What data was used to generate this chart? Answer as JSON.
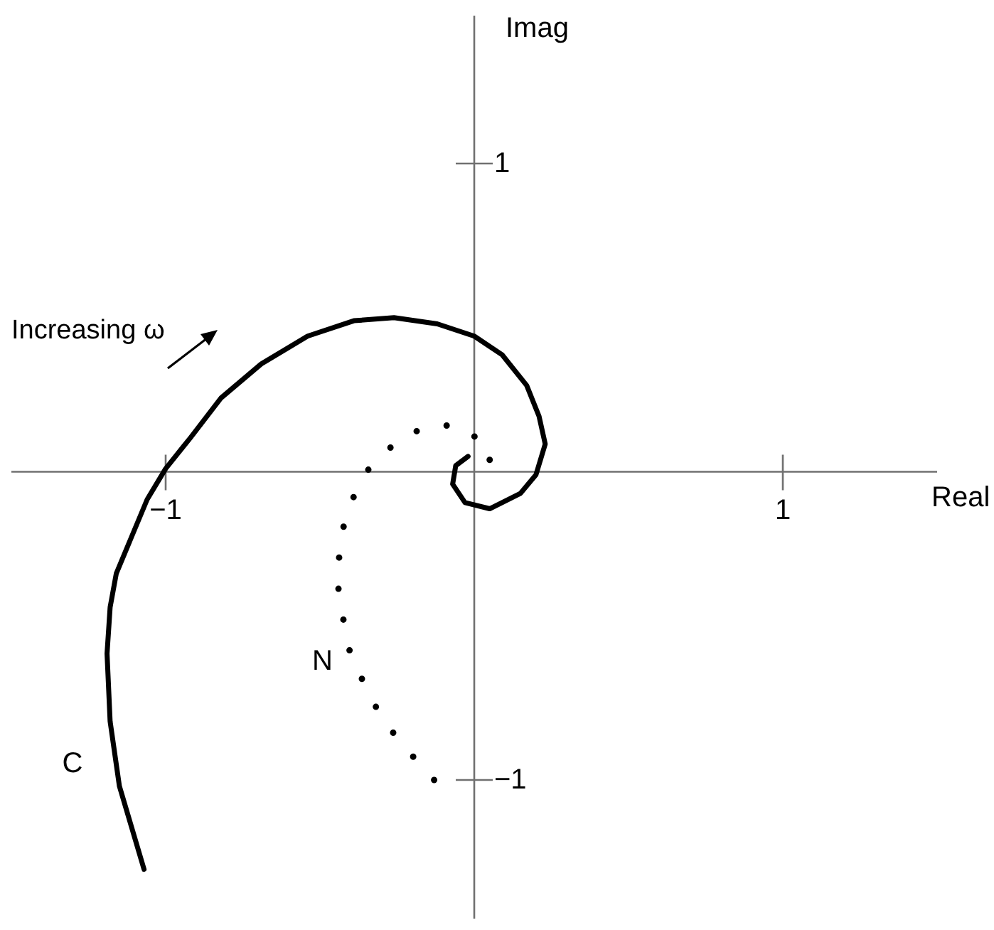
{
  "chart_data": {
    "type": "line",
    "xlabel": "Real",
    "ylabel": "Imag",
    "annotations": [
      "Increasing ω"
    ],
    "xlim": [
      -1.5,
      1.5
    ],
    "ylim": [
      -1.45,
      1.48
    ],
    "xticks": [
      {
        "value": -1,
        "label": "−1"
      },
      1
    ],
    "yticks": [
      {
        "value": -1,
        "label": "−1"
      },
      1
    ],
    "series": [
      {
        "name": "C",
        "color": "#000000",
        "line_style": "solid",
        "x": [
          -1.07,
          -1.15,
          -1.18,
          -1.19,
          -1.18,
          -1.16,
          -1.11,
          -1.06,
          -1.0,
          -0.92,
          -0.82,
          -0.69,
          -0.54,
          -0.39,
          -0.26,
          -0.12,
          0.0,
          0.09,
          0.17,
          0.21,
          0.23,
          0.2,
          0.15,
          0.05,
          -0.03,
          -0.07,
          -0.06,
          -0.02
        ],
        "values": [
          -1.29,
          -1.02,
          -0.81,
          -0.59,
          -0.44,
          -0.33,
          -0.21,
          -0.09,
          0.01,
          0.11,
          0.24,
          0.35,
          0.44,
          0.49,
          0.5,
          0.48,
          0.44,
          0.38,
          0.28,
          0.18,
          0.09,
          -0.01,
          -0.07,
          -0.12,
          -0.1,
          -0.04,
          0.02,
          0.05
        ]
      },
      {
        "name": "N",
        "color": "#000000",
        "line_style": "dotted",
        "x": [
          -0.13,
          -0.22,
          -0.3,
          -0.35,
          -0.4,
          -0.42,
          -0.44,
          -0.44,
          -0.43,
          -0.4,
          -0.35,
          -0.25,
          -0.15,
          -0.05,
          0.05,
          0.05
        ],
        "values": [
          -1.0,
          -0.9,
          -0.8,
          -0.7,
          -0.6,
          -0.5,
          -0.4,
          -0.3,
          -0.2,
          -0.1,
          0.0,
          0.1,
          0.15,
          0.15,
          0.08,
          -0.01
        ]
      }
    ]
  }
}
